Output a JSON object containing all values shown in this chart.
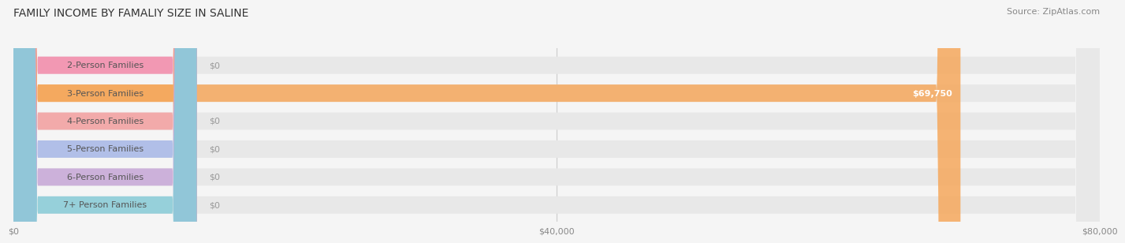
{
  "title": "FAMILY INCOME BY FAMALIY SIZE IN SALINE",
  "source": "Source: ZipAtlas.com",
  "categories": [
    "2-Person Families",
    "3-Person Families",
    "4-Person Families",
    "5-Person Families",
    "6-Person Families",
    "7+ Person Families"
  ],
  "values": [
    0,
    69750,
    0,
    0,
    0,
    0
  ],
  "bar_colors": [
    "#f48aaa",
    "#f5a85c",
    "#f4a0a0",
    "#a8b8e8",
    "#c8a8d8",
    "#88ccd8"
  ],
  "value_labels": [
    "$0",
    "$69,750",
    "$0",
    "$0",
    "$0",
    "$0"
  ],
  "xlim": [
    0,
    80000
  ],
  "xticks": [
    0,
    40000,
    80000
  ],
  "xticklabels": [
    "$0",
    "$40,000",
    "$80,000"
  ],
  "background_color": "#f5f5f5",
  "bar_background": "#e8e8e8",
  "title_fontsize": 10,
  "source_fontsize": 8,
  "label_fontsize": 8,
  "value_fontsize": 8
}
